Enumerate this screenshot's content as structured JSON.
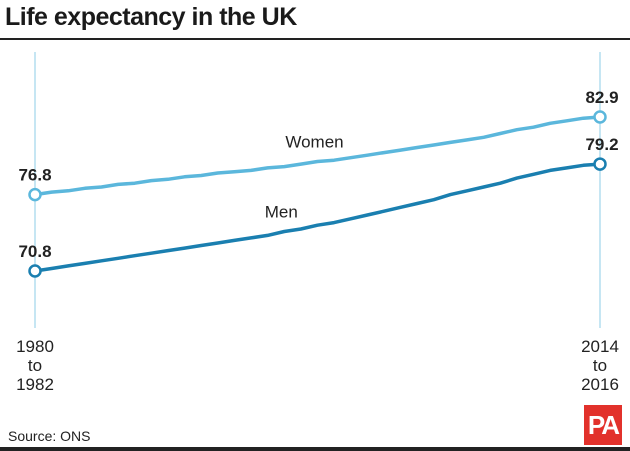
{
  "chart_data": {
    "type": "line",
    "title": "Life expectancy in the UK",
    "x_labels": [
      [
        "1980",
        "to",
        "1982"
      ],
      [
        "2014",
        "to",
        "2016"
      ]
    ],
    "series": [
      {
        "name": "Women",
        "color": "#5bb7dc",
        "values": [
          76.8,
          77.0,
          77.1,
          77.3,
          77.4,
          77.6,
          77.7,
          77.9,
          78.0,
          78.2,
          78.3,
          78.5,
          78.6,
          78.7,
          78.9,
          79.0,
          79.2,
          79.4,
          79.5,
          79.7,
          79.9,
          80.1,
          80.3,
          80.5,
          80.7,
          80.9,
          81.1,
          81.3,
          81.6,
          81.9,
          82.1,
          82.4,
          82.6,
          82.8,
          82.9
        ],
        "start_label": "76.8",
        "end_label": "82.9"
      },
      {
        "name": "Men",
        "color": "#1a7fb0",
        "values": [
          70.8,
          71.0,
          71.2,
          71.4,
          71.6,
          71.8,
          72.0,
          72.2,
          72.4,
          72.6,
          72.8,
          73.0,
          73.2,
          73.4,
          73.6,
          73.9,
          74.1,
          74.4,
          74.6,
          74.9,
          75.2,
          75.5,
          75.8,
          76.1,
          76.4,
          76.8,
          77.1,
          77.4,
          77.7,
          78.1,
          78.4,
          78.7,
          78.9,
          79.1,
          79.2
        ],
        "start_label": "70.8",
        "end_label": "79.2"
      }
    ],
    "grid": false,
    "gridline_color": "#c6e6f3"
  },
  "source": "Source: ONS",
  "logo": "PA"
}
